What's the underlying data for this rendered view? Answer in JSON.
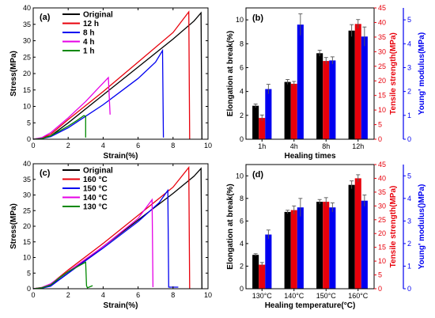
{
  "colors": {
    "black": "#000000",
    "red": "#e8000b",
    "blue": "#0000f0",
    "magenta": "#e600e6",
    "green": "#008800"
  },
  "chart_data": [
    {
      "id": "a",
      "type": "line",
      "panel_label": "(a)",
      "xlabel": "Strain(%)",
      "ylabel": "Stress(MPa)",
      "xlim": [
        0,
        10
      ],
      "ylim": [
        0,
        40
      ],
      "xticks": [
        0,
        2,
        4,
        6,
        8,
        10
      ],
      "yticks": [
        0,
        5,
        10,
        15,
        20,
        25,
        30,
        35,
        40
      ],
      "legend_position": "top-left",
      "series": [
        {
          "name": "Original",
          "color": "#000000",
          "x": [
            0,
            0.5,
            1.0,
            2,
            4,
            6,
            8,
            9.2,
            9.6,
            9.65
          ],
          "y": [
            0,
            0.3,
            1.0,
            5,
            13.5,
            22,
            30.5,
            36,
            38.5,
            0
          ]
        },
        {
          "name": "12 h",
          "color": "#e8000b",
          "x": [
            0,
            0.5,
            1.0,
            2,
            4,
            6,
            8,
            8.9,
            8.95
          ],
          "y": [
            0,
            0.4,
            1.5,
            6,
            14.5,
            23.5,
            32.5,
            38.8,
            0
          ]
        },
        {
          "name": "8 h",
          "color": "#0000f0",
          "x": [
            0,
            0.5,
            1.0,
            2,
            3,
            4,
            5,
            6,
            7,
            7.4,
            7.45
          ],
          "y": [
            0,
            0.2,
            0.8,
            3.5,
            7,
            10.5,
            14.5,
            18.5,
            23.5,
            27,
            0.5
          ]
        },
        {
          "name": "4 h",
          "color": "#e600e6",
          "x": [
            0,
            0.5,
            1.0,
            2,
            3,
            3.8,
            4.3,
            4.4
          ],
          "y": [
            0,
            0.5,
            2,
            6.5,
            11.5,
            16,
            18.8,
            7.5
          ]
        },
        {
          "name": "1 h",
          "color": "#008800",
          "x": [
            0,
            0.5,
            1.0,
            1.5,
            2.0,
            2.5,
            2.9,
            3.0,
            3.0
          ],
          "y": [
            0,
            0.2,
            1.0,
            2.5,
            4.0,
            5.7,
            7.2,
            7.0,
            0.5
          ]
        }
      ]
    },
    {
      "id": "b",
      "type": "bar",
      "panel_label": "(b)",
      "xlabel": "Healing times",
      "ylabel": "Elongation at break(%)",
      "ylabel_right1": "Tensile strength(MPa)",
      "ylabel_right2": "Young' modulus(MPa)",
      "categories": [
        "1h",
        "4h",
        "8h",
        "12h"
      ],
      "ylim": [
        0,
        11
      ],
      "yticks": [
        0,
        2,
        4,
        6,
        8,
        10
      ],
      "ylim_right1": [
        0,
        45
      ],
      "yticks_right1": [
        0,
        5,
        10,
        15,
        20,
        25,
        30,
        35,
        40,
        45
      ],
      "ylim_right2": [
        0,
        5.5
      ],
      "yticks_right2": [
        0,
        1,
        2,
        3,
        4,
        5
      ],
      "series": [
        {
          "name": "Elongation at break",
          "color": "#000000",
          "axis": "left",
          "values": [
            2.8,
            4.8,
            7.2,
            9.1
          ],
          "errors": [
            0.15,
            0.2,
            0.25,
            0.5
          ]
        },
        {
          "name": "Tensile strength",
          "color": "#e8000b",
          "axis": "right1",
          "values": [
            7.3,
            19.0,
            26.8,
            39.5
          ],
          "errors": [
            1.0,
            0.8,
            1.2,
            1.5
          ]
        },
        {
          "name": "Young' modulus",
          "color": "#0000f0",
          "axis": "right2",
          "values": [
            2.1,
            4.8,
            3.3,
            4.3
          ],
          "errors": [
            0.2,
            0.45,
            0.15,
            0.4
          ]
        }
      ]
    },
    {
      "id": "c",
      "type": "line",
      "panel_label": "(c)",
      "xlabel": "Strain(%)",
      "ylabel": "Stress(MPa)",
      "xlim": [
        0,
        10
      ],
      "ylim": [
        0,
        40
      ],
      "xticks": [
        0,
        2,
        4,
        6,
        8,
        10
      ],
      "yticks": [
        0,
        5,
        10,
        15,
        20,
        25,
        30,
        35,
        40
      ],
      "legend_position": "top-left",
      "series": [
        {
          "name": "Original",
          "color": "#000000",
          "x": [
            0,
            0.5,
            1.0,
            2,
            4,
            6,
            8,
            9.2,
            9.6,
            9.65
          ],
          "y": [
            0,
            0.3,
            1.0,
            5,
            13.5,
            22,
            30.5,
            36,
            38.5,
            0
          ]
        },
        {
          "name": "160 °C",
          "color": "#e8000b",
          "x": [
            0,
            0.5,
            1.0,
            2,
            4,
            6,
            8,
            8.9,
            8.95
          ],
          "y": [
            0,
            0.4,
            1.5,
            6,
            14.5,
            23.5,
            32.5,
            38.8,
            0
          ]
        },
        {
          "name": "150 °C",
          "color": "#0000f0",
          "x": [
            0,
            0.5,
            1.0,
            2,
            4,
            6,
            7.2,
            7.7,
            7.75,
            8.3
          ],
          "y": [
            0,
            0.2,
            0.8,
            5,
            13,
            21.5,
            27.5,
            31.5,
            0.5,
            0.5
          ]
        },
        {
          "name": "140 °C",
          "color": "#e600e6",
          "x": [
            0,
            0.5,
            1.0,
            2,
            4,
            6,
            6.8,
            6.85
          ],
          "y": [
            0,
            0.4,
            1.6,
            5.5,
            13.5,
            22.5,
            28.5,
            0.5
          ]
        },
        {
          "name": "130 °C",
          "color": "#008800",
          "x": [
            0,
            0.5,
            1.0,
            1.5,
            2.0,
            2.5,
            3.0,
            3.05,
            3.1,
            3.4
          ],
          "y": [
            0,
            0.3,
            1.2,
            3.5,
            5.5,
            7.0,
            8.5,
            1.0,
            0.3,
            1.0
          ]
        }
      ]
    },
    {
      "id": "d",
      "type": "bar",
      "panel_label": "(d)",
      "xlabel": "Healing temperature(°C)",
      "ylabel": "Elongation at break(%)",
      "ylabel_right1": "Tensile strength(MPa)",
      "ylabel_right2": "Young' modulus()MPa)",
      "categories": [
        "130°C",
        "140°C",
        "150°C",
        "160°C"
      ],
      "ylim": [
        0,
        11
      ],
      "yticks": [
        0,
        2,
        4,
        6,
        8,
        10
      ],
      "ylim_right1": [
        0,
        45
      ],
      "yticks_right1": [
        0,
        5,
        10,
        15,
        20,
        25,
        30,
        35,
        40,
        45
      ],
      "ylim_right2": [
        0,
        5.5
      ],
      "yticks_right2": [
        0,
        1,
        2,
        3,
        4,
        5
      ],
      "series": [
        {
          "name": "Elongation at break",
          "color": "#000000",
          "axis": "left",
          "values": [
            3.0,
            6.8,
            7.7,
            9.2
          ],
          "errors": [
            0.1,
            0.15,
            0.2,
            0.35
          ]
        },
        {
          "name": "Tensile strength",
          "color": "#e8000b",
          "axis": "right1",
          "values": [
            8.7,
            28.5,
            31.5,
            40.0
          ],
          "errors": [
            0.8,
            1.5,
            1.5,
            1.3
          ]
        },
        {
          "name": "Young' modulus",
          "color": "#0000f0",
          "axis": "right2",
          "values": [
            2.4,
            3.6,
            3.6,
            3.9
          ],
          "errors": [
            0.2,
            0.4,
            0.2,
            0.25
          ]
        }
      ]
    }
  ]
}
